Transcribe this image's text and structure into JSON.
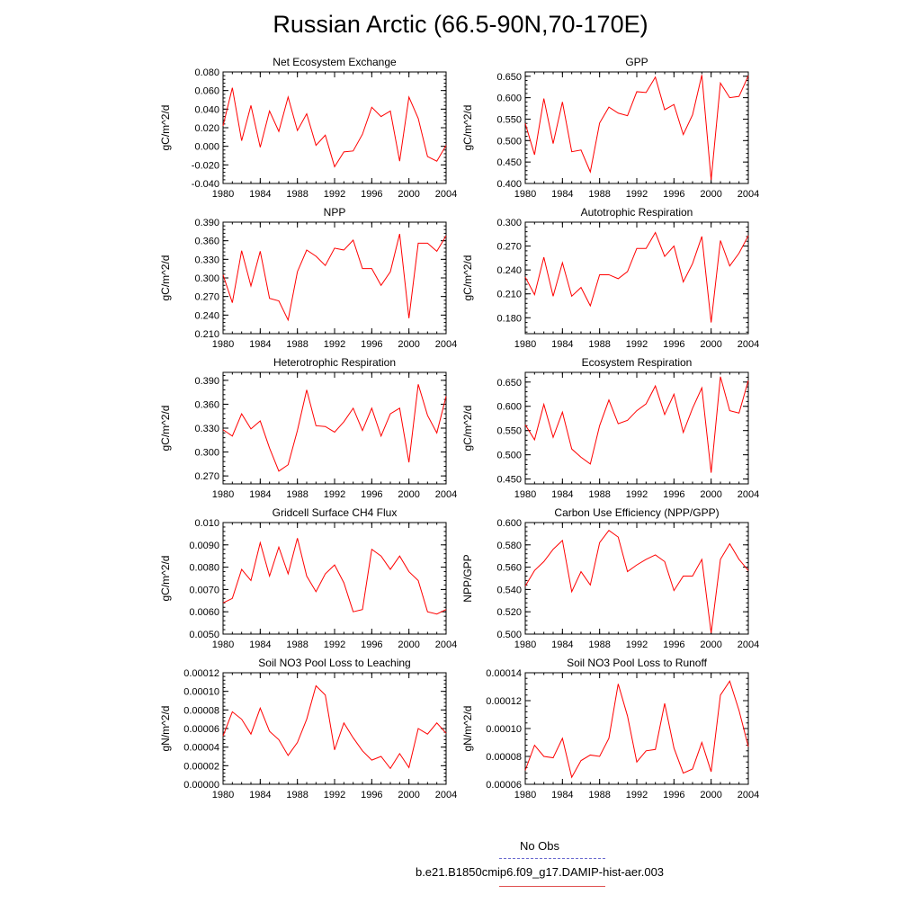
{
  "title": "Russian Arctic (66.5-90N,70-170E)",
  "legend": {
    "entries": [
      {
        "label": "No Obs",
        "color": "#6a6ad0",
        "style": "dashed"
      },
      {
        "label": "b.e21.B1850cmip6.f09_g17.DAMIP-hist-aer.003",
        "color": "#e05050",
        "style": "solid"
      }
    ]
  },
  "chart_data": [
    {
      "type": "line",
      "title": "Net Ecosystem Exchange",
      "ylabel": "gC/m^2/d",
      "xlim": [
        1980,
        2004
      ],
      "ylim": [
        -0.04,
        0.08
      ],
      "xticks": [
        1980,
        1984,
        1988,
        1992,
        1996,
        2000,
        2004
      ],
      "yticks": [
        -0.04,
        -0.02,
        0.0,
        0.02,
        0.04,
        0.06,
        0.08
      ],
      "ytick_labels": [
        "-0.040",
        "-0.020",
        "0.000",
        "0.020",
        "0.040",
        "0.060",
        "0.080"
      ],
      "x": [
        1980,
        1981,
        1982,
        1983,
        1984,
        1985,
        1986,
        1987,
        1988,
        1989,
        1990,
        1991,
        1992,
        1993,
        1994,
        1995,
        1996,
        1997,
        1998,
        1999,
        2000,
        2001,
        2002,
        2003,
        2004
      ],
      "series": [
        {
          "color": "#ff0000",
          "values": [
            0.022,
            0.063,
            0.006,
            0.044,
            -0.001,
            0.038,
            0.016,
            0.053,
            0.017,
            0.035,
            0.001,
            0.012,
            -0.022,
            -0.006,
            -0.005,
            0.013,
            0.042,
            0.032,
            0.038,
            -0.016,
            0.053,
            0.03,
            -0.011,
            -0.016,
            0.001
          ]
        }
      ]
    },
    {
      "type": "line",
      "title": "GPP",
      "ylabel": "gC/m^2/d",
      "xlim": [
        1980,
        2004
      ],
      "ylim": [
        0.4,
        0.66
      ],
      "xticks": [
        1980,
        1984,
        1988,
        1992,
        1996,
        2000,
        2004
      ],
      "yticks": [
        0.4,
        0.45,
        0.5,
        0.55,
        0.6,
        0.65
      ],
      "ytick_labels": [
        "0.400",
        "0.450",
        "0.500",
        "0.550",
        "0.600",
        "0.650"
      ],
      "x": [
        1980,
        1981,
        1982,
        1983,
        1984,
        1985,
        1986,
        1987,
        1988,
        1989,
        1990,
        1991,
        1992,
        1993,
        1994,
        1995,
        1996,
        1997,
        1998,
        1999,
        2000,
        2001,
        2002,
        2003,
        2004
      ],
      "series": [
        {
          "color": "#ff0000",
          "values": [
            0.54,
            0.467,
            0.598,
            0.493,
            0.59,
            0.474,
            0.478,
            0.427,
            0.541,
            0.578,
            0.564,
            0.558,
            0.614,
            0.612,
            0.648,
            0.572,
            0.584,
            0.514,
            0.56,
            0.653,
            0.408,
            0.634,
            0.6,
            0.603,
            0.651
          ]
        }
      ]
    },
    {
      "type": "line",
      "title": "NPP",
      "ylabel": "gC/m^2/d",
      "xlim": [
        1980,
        2004
      ],
      "ylim": [
        0.21,
        0.39
      ],
      "xticks": [
        1980,
        1984,
        1988,
        1992,
        1996,
        2000,
        2004
      ],
      "yticks": [
        0.21,
        0.24,
        0.27,
        0.3,
        0.33,
        0.36,
        0.39
      ],
      "ytick_labels": [
        "0.210",
        "0.240",
        "0.270",
        "0.300",
        "0.330",
        "0.360",
        "0.390"
      ],
      "x": [
        1980,
        1981,
        1982,
        1983,
        1984,
        1985,
        1986,
        1987,
        1988,
        1989,
        1990,
        1991,
        1992,
        1993,
        1994,
        1995,
        1996,
        1997,
        1998,
        1999,
        2000,
        2001,
        2002,
        2003,
        2004
      ],
      "series": [
        {
          "color": "#ff0000",
          "values": [
            0.305,
            0.26,
            0.344,
            0.287,
            0.343,
            0.267,
            0.263,
            0.232,
            0.31,
            0.345,
            0.335,
            0.32,
            0.348,
            0.345,
            0.361,
            0.315,
            0.315,
            0.288,
            0.31,
            0.371,
            0.235,
            0.356,
            0.356,
            0.343,
            0.368
          ]
        }
      ]
    },
    {
      "type": "line",
      "title": "Autotrophic Respiration",
      "ylabel": "gC/m^2/d",
      "xlim": [
        1980,
        2004
      ],
      "ylim": [
        0.16,
        0.3
      ],
      "xticks": [
        1980,
        1984,
        1988,
        1992,
        1996,
        2000,
        2004
      ],
      "yticks": [
        0.18,
        0.21,
        0.24,
        0.27,
        0.3
      ],
      "ytick_labels": [
        "0.180",
        "0.210",
        "0.240",
        "0.270",
        "0.300"
      ],
      "x": [
        1980,
        1981,
        1982,
        1983,
        1984,
        1985,
        1986,
        1987,
        1988,
        1989,
        1990,
        1991,
        1992,
        1993,
        1994,
        1995,
        1996,
        1997,
        1998,
        1999,
        2000,
        2001,
        2002,
        2003,
        2004
      ],
      "series": [
        {
          "color": "#ff0000",
          "values": [
            0.231,
            0.209,
            0.256,
            0.207,
            0.249,
            0.207,
            0.218,
            0.195,
            0.234,
            0.234,
            0.229,
            0.238,
            0.267,
            0.267,
            0.287,
            0.257,
            0.27,
            0.225,
            0.248,
            0.282,
            0.174,
            0.277,
            0.245,
            0.261,
            0.283
          ]
        }
      ]
    },
    {
      "type": "line",
      "title": "Heterotrophic Respiration",
      "ylabel": "gC/m^2/d",
      "xlim": [
        1980,
        2004
      ],
      "ylim": [
        0.26,
        0.4
      ],
      "xticks": [
        1980,
        1984,
        1988,
        1992,
        1996,
        2000,
        2004
      ],
      "yticks": [
        0.27,
        0.3,
        0.33,
        0.36,
        0.39
      ],
      "ytick_labels": [
        "0.270",
        "0.300",
        "0.330",
        "0.360",
        "0.390"
      ],
      "x": [
        1980,
        1981,
        1982,
        1983,
        1984,
        1985,
        1986,
        1987,
        1988,
        1989,
        1990,
        1991,
        1992,
        1993,
        1994,
        1995,
        1996,
        1997,
        1998,
        1999,
        2000,
        2001,
        2002,
        2003,
        2004
      ],
      "series": [
        {
          "color": "#ff0000",
          "values": [
            0.328,
            0.32,
            0.348,
            0.329,
            0.339,
            0.305,
            0.276,
            0.284,
            0.327,
            0.378,
            0.333,
            0.332,
            0.325,
            0.338,
            0.355,
            0.327,
            0.355,
            0.32,
            0.348,
            0.355,
            0.287,
            0.385,
            0.346,
            0.324,
            0.37
          ]
        }
      ]
    },
    {
      "type": "line",
      "title": "Ecosystem Respiration",
      "ylabel": "gC/m^2/d",
      "xlim": [
        1980,
        2004
      ],
      "ylim": [
        0.44,
        0.67
      ],
      "xticks": [
        1980,
        1984,
        1988,
        1992,
        1996,
        2000,
        2004
      ],
      "yticks": [
        0.45,
        0.5,
        0.55,
        0.6,
        0.65
      ],
      "ytick_labels": [
        "0.450",
        "0.500",
        "0.550",
        "0.600",
        "0.650"
      ],
      "x": [
        1980,
        1981,
        1982,
        1983,
        1984,
        1985,
        1986,
        1987,
        1988,
        1989,
        1990,
        1991,
        1992,
        1993,
        1994,
        1995,
        1996,
        1997,
        1998,
        1999,
        2000,
        2001,
        2002,
        2003,
        2004
      ],
      "series": [
        {
          "color": "#ff0000",
          "values": [
            0.562,
            0.531,
            0.604,
            0.536,
            0.588,
            0.512,
            0.495,
            0.481,
            0.56,
            0.613,
            0.564,
            0.571,
            0.591,
            0.605,
            0.642,
            0.583,
            0.625,
            0.546,
            0.596,
            0.638,
            0.463,
            0.661,
            0.591,
            0.586,
            0.653
          ]
        }
      ]
    },
    {
      "type": "line",
      "title": "Gridcell Surface CH4 Flux",
      "ylabel": "gC/m^2/d",
      "xlim": [
        1980,
        2004
      ],
      "ylim": [
        0.005,
        0.01
      ],
      "xticks": [
        1980,
        1984,
        1988,
        1992,
        1996,
        2000,
        2004
      ],
      "yticks": [
        0.005,
        0.006,
        0.007,
        0.008,
        0.009,
        0.01
      ],
      "ytick_labels": [
        "0.0050",
        "0.0060",
        "0.0070",
        "0.0080",
        "0.0090",
        "0.010"
      ],
      "x": [
        1980,
        1981,
        1982,
        1983,
        1984,
        1985,
        1986,
        1987,
        1988,
        1989,
        1990,
        1991,
        1992,
        1993,
        1994,
        1995,
        1996,
        1997,
        1998,
        1999,
        2000,
        2001,
        2002,
        2003,
        2004
      ],
      "series": [
        {
          "color": "#ff0000",
          "values": [
            0.0064,
            0.0066,
            0.0079,
            0.0074,
            0.0091,
            0.0076,
            0.0089,
            0.0077,
            0.0093,
            0.0076,
            0.0069,
            0.0077,
            0.0081,
            0.0073,
            0.006,
            0.0061,
            0.0088,
            0.0085,
            0.0079,
            0.0085,
            0.0078,
            0.0074,
            0.006,
            0.0059,
            0.0061
          ]
        }
      ]
    },
    {
      "type": "line",
      "title": "Carbon Use Efficiency (NPP/GPP)",
      "ylabel": "NPP/GPP",
      "xlim": [
        1980,
        2004
      ],
      "ylim": [
        0.5,
        0.6
      ],
      "xticks": [
        1980,
        1984,
        1988,
        1992,
        1996,
        2000,
        2004
      ],
      "yticks": [
        0.5,
        0.52,
        0.54,
        0.56,
        0.58,
        0.6
      ],
      "ytick_labels": [
        "0.500",
        "0.520",
        "0.540",
        "0.560",
        "0.580",
        "0.600"
      ],
      "x": [
        1980,
        1981,
        1982,
        1983,
        1984,
        1985,
        1986,
        1987,
        1988,
        1989,
        1990,
        1991,
        1992,
        1993,
        1994,
        1995,
        1996,
        1997,
        1998,
        1999,
        2000,
        2001,
        2002,
        2003,
        2004
      ],
      "series": [
        {
          "color": "#ff0000",
          "values": [
            0.543,
            0.557,
            0.565,
            0.576,
            0.584,
            0.538,
            0.556,
            0.544,
            0.582,
            0.593,
            0.587,
            0.556,
            0.562,
            0.567,
            0.571,
            0.565,
            0.539,
            0.552,
            0.552,
            0.567,
            0.501,
            0.567,
            0.581,
            0.567,
            0.557
          ]
        }
      ]
    },
    {
      "type": "line",
      "title": "Soil NO3 Pool Loss to Leaching",
      "ylabel": "gN/m^2/d",
      "xlim": [
        1980,
        2004
      ],
      "ylim": [
        0,
        0.00012
      ],
      "xticks": [
        1980,
        1984,
        1988,
        1992,
        1996,
        2000,
        2004
      ],
      "yticks": [
        0,
        2e-05,
        4e-05,
        6e-05,
        8e-05,
        0.0001,
        0.00012
      ],
      "ytick_labels": [
        "0.00000",
        "0.00002",
        "0.00004",
        "0.00006",
        "0.00008",
        "0.00010",
        "0.00012"
      ],
      "x": [
        1980,
        1981,
        1982,
        1983,
        1984,
        1985,
        1986,
        1987,
        1988,
        1989,
        1990,
        1991,
        1992,
        1993,
        1994,
        1995,
        1996,
        1997,
        1998,
        1999,
        2000,
        2001,
        2002,
        2003,
        2004
      ],
      "series": [
        {
          "color": "#ff0000",
          "values": [
            5.2e-05,
            7.8e-05,
            7e-05,
            5.4e-05,
            8.2e-05,
            5.7e-05,
            4.8e-05,
            3.1e-05,
            4.5e-05,
            7e-05,
            0.000106,
            9.6e-05,
            3.7e-05,
            6.6e-05,
            5e-05,
            3.6e-05,
            2.6e-05,
            3e-05,
            1.7e-05,
            3.3e-05,
            1.8e-05,
            6e-05,
            5.4e-05,
            6.6e-05,
            5.5e-05
          ]
        }
      ]
    },
    {
      "type": "line",
      "title": "Soil NO3 Pool Loss to Runoff",
      "ylabel": "gN/m^2/d",
      "xlim": [
        1980,
        2004
      ],
      "ylim": [
        6e-05,
        0.00014
      ],
      "xticks": [
        1980,
        1984,
        1988,
        1992,
        1996,
        2000,
        2004
      ],
      "yticks": [
        6e-05,
        8e-05,
        0.0001,
        0.00012,
        0.00014
      ],
      "ytick_labels": [
        "0.00006",
        "0.00008",
        "0.00010",
        "0.00012",
        "0.00014"
      ],
      "x": [
        1980,
        1981,
        1982,
        1983,
        1984,
        1985,
        1986,
        1987,
        1988,
        1989,
        1990,
        1991,
        1992,
        1993,
        1994,
        1995,
        1996,
        1997,
        1998,
        1999,
        2000,
        2001,
        2002,
        2003,
        2004
      ],
      "series": [
        {
          "color": "#ff0000",
          "values": [
            7e-05,
            8.8e-05,
            8e-05,
            7.9e-05,
            9.3e-05,
            6.5e-05,
            7.7e-05,
            8.1e-05,
            8e-05,
            9.3e-05,
            0.000132,
            0.000109,
            7.6e-05,
            8.4e-05,
            8.5e-05,
            0.000118,
            8.6e-05,
            6.8e-05,
            7.1e-05,
            9e-05,
            6.9e-05,
            0.000124,
            0.000134,
            0.000113,
            8.7e-05
          ]
        }
      ]
    }
  ]
}
